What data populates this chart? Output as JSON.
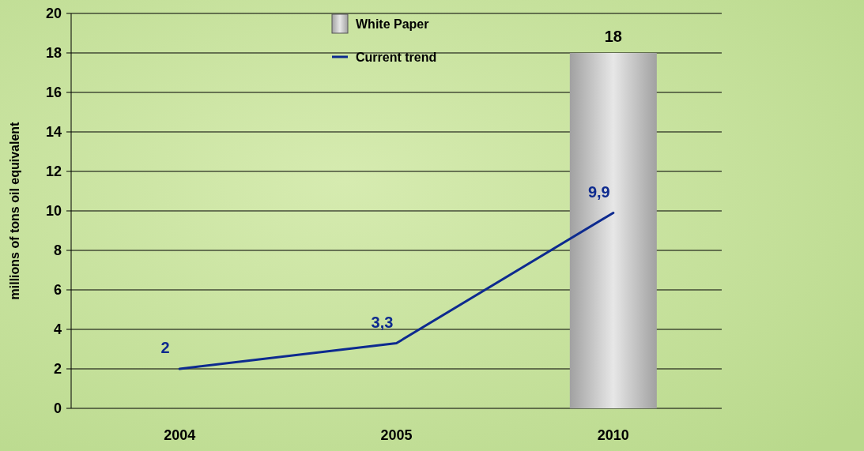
{
  "chart_data": {
    "type": "bar",
    "categories": [
      "2004",
      "2005",
      "2010"
    ],
    "ylabel": "millions of tons oil equivalent",
    "ylim": [
      0,
      20
    ],
    "yticks": [
      0,
      2,
      4,
      6,
      8,
      10,
      12,
      14,
      16,
      18,
      20
    ],
    "grid": "y",
    "legend": "top",
    "series": [
      {
        "name": "White Paper",
        "color": "#c8c8c8",
        "values": [
          null,
          null,
          18
        ],
        "value_labels": [
          null,
          null,
          "18"
        ]
      },
      {
        "name": "Current trend",
        "type": "line",
        "color": "#0d2a8f",
        "values": [
          2,
          3.3,
          9.9
        ],
        "value_labels": [
          "2",
          "3,3",
          "9,9"
        ]
      }
    ]
  }
}
